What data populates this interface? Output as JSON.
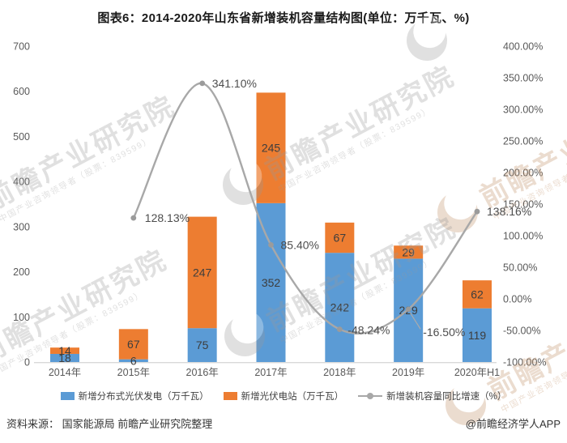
{
  "title": "图表6：2014-2020年山东省新增装机容量结构图(单位：万千瓦、%)",
  "chart_data": {
    "type": "bar",
    "subtype": "stacked-bar-with-line",
    "categories": [
      "2014年",
      "2015年",
      "2016年",
      "2017年",
      "2018年",
      "2019年",
      "2020年H1"
    ],
    "series": [
      {
        "name": "新增分布式光伏发电（万千瓦）",
        "type": "bar",
        "color": "#5B9BD5",
        "values": [
          18,
          6,
          75,
          352,
          242,
          229,
          119
        ]
      },
      {
        "name": "新增光伏电站（万千瓦）",
        "type": "bar",
        "color": "#ED7D31",
        "values": [
          14,
          67,
          247,
          245,
          67,
          29,
          62
        ]
      },
      {
        "name": "新增装机容量同比增速（%）",
        "type": "line",
        "color": "#A8A8A8",
        "values": [
          null,
          128.13,
          341.1,
          85.4,
          -48.24,
          -16.5,
          138.16
        ],
        "point_labels": [
          "",
          "128.13%",
          "341.10%",
          "85.40%",
          "-48.24%",
          "-16.50%",
          "138.16%"
        ]
      }
    ],
    "left_axis": {
      "min": 0,
      "max": 700,
      "step": 100,
      "ticks": [
        "700",
        "600",
        "500",
        "400",
        "300",
        "200",
        "100",
        "0"
      ]
    },
    "right_axis": {
      "min": -100,
      "max": 400,
      "step": 50,
      "ticks": [
        "400.00%",
        "350.00%",
        "300.00%",
        "250.00%",
        "200.00%",
        "150.00%",
        "100.00%",
        "50.00%",
        "0.00%",
        "-50.00%",
        "-100.00%"
      ]
    },
    "grid": false,
    "legend_position": "bottom"
  },
  "legend": {
    "items": [
      {
        "label": "新增分布式光伏发电（万千瓦）",
        "swatch": "blue-rect"
      },
      {
        "label": "新增光伏电站（万千瓦）",
        "swatch": "orange-rect"
      },
      {
        "label": "新增装机容量同比增速（%）",
        "swatch": "gray-line-dot"
      }
    ]
  },
  "footer": {
    "source": "资料来源： 国家能源局 前瞻产业研究院整理",
    "credit": "@前瞻经济学人APP"
  },
  "watermark": {
    "big_text": "前瞻产业研究院",
    "small_text": "中国产业咨询领导者（股票：839599）"
  },
  "colors": {
    "bar_blue": "#5B9BD5",
    "bar_orange": "#ED7D31",
    "line_gray": "#A8A8A8",
    "marker_gray": "#9b9b9b",
    "axis_text": "#595959",
    "label_text": "#3d3d3d",
    "axis_line": "#D9D9D9",
    "watermark_gray": "#9a9a9a",
    "watermark_tan": "#bf8d62"
  }
}
